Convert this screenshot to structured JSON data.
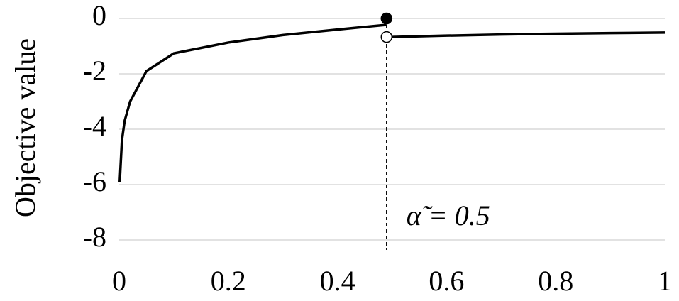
{
  "chart_data": {
    "type": "line",
    "y_label": "Objective value",
    "annotation": "α̃ = 0.5",
    "vline": 0.49,
    "xlim": [
      0,
      1
    ],
    "xticks": [
      0,
      0.2,
      0.4,
      0.6,
      0.8,
      1
    ],
    "ylim": [
      -8,
      0
    ],
    "yticks": [
      -8,
      -6,
      -4,
      -2,
      0
    ],
    "grid": true,
    "series": [
      {
        "color": "#000000",
        "x": [
          0.001,
          0.005,
          0.01,
          0.02,
          0.05,
          0.1,
          0.2,
          0.3,
          0.4,
          0.49
        ],
        "values": [
          -5.9,
          -4.4,
          -3.7,
          -3.0,
          -1.9,
          -1.26,
          -0.87,
          -0.6,
          -0.4,
          -0.23
        ]
      },
      {
        "color": "#000000",
        "x": [
          0.5,
          0.6,
          0.7,
          0.8,
          0.9,
          1
        ],
        "values": [
          -0.67,
          -0.62,
          -0.58,
          -0.55,
          -0.53,
          -0.51
        ]
      }
    ],
    "points": [
      {
        "x": 0.49,
        "value": 0,
        "filled": true
      },
      {
        "x": 0.49,
        "value": -0.67,
        "filled": false
      }
    ]
  }
}
